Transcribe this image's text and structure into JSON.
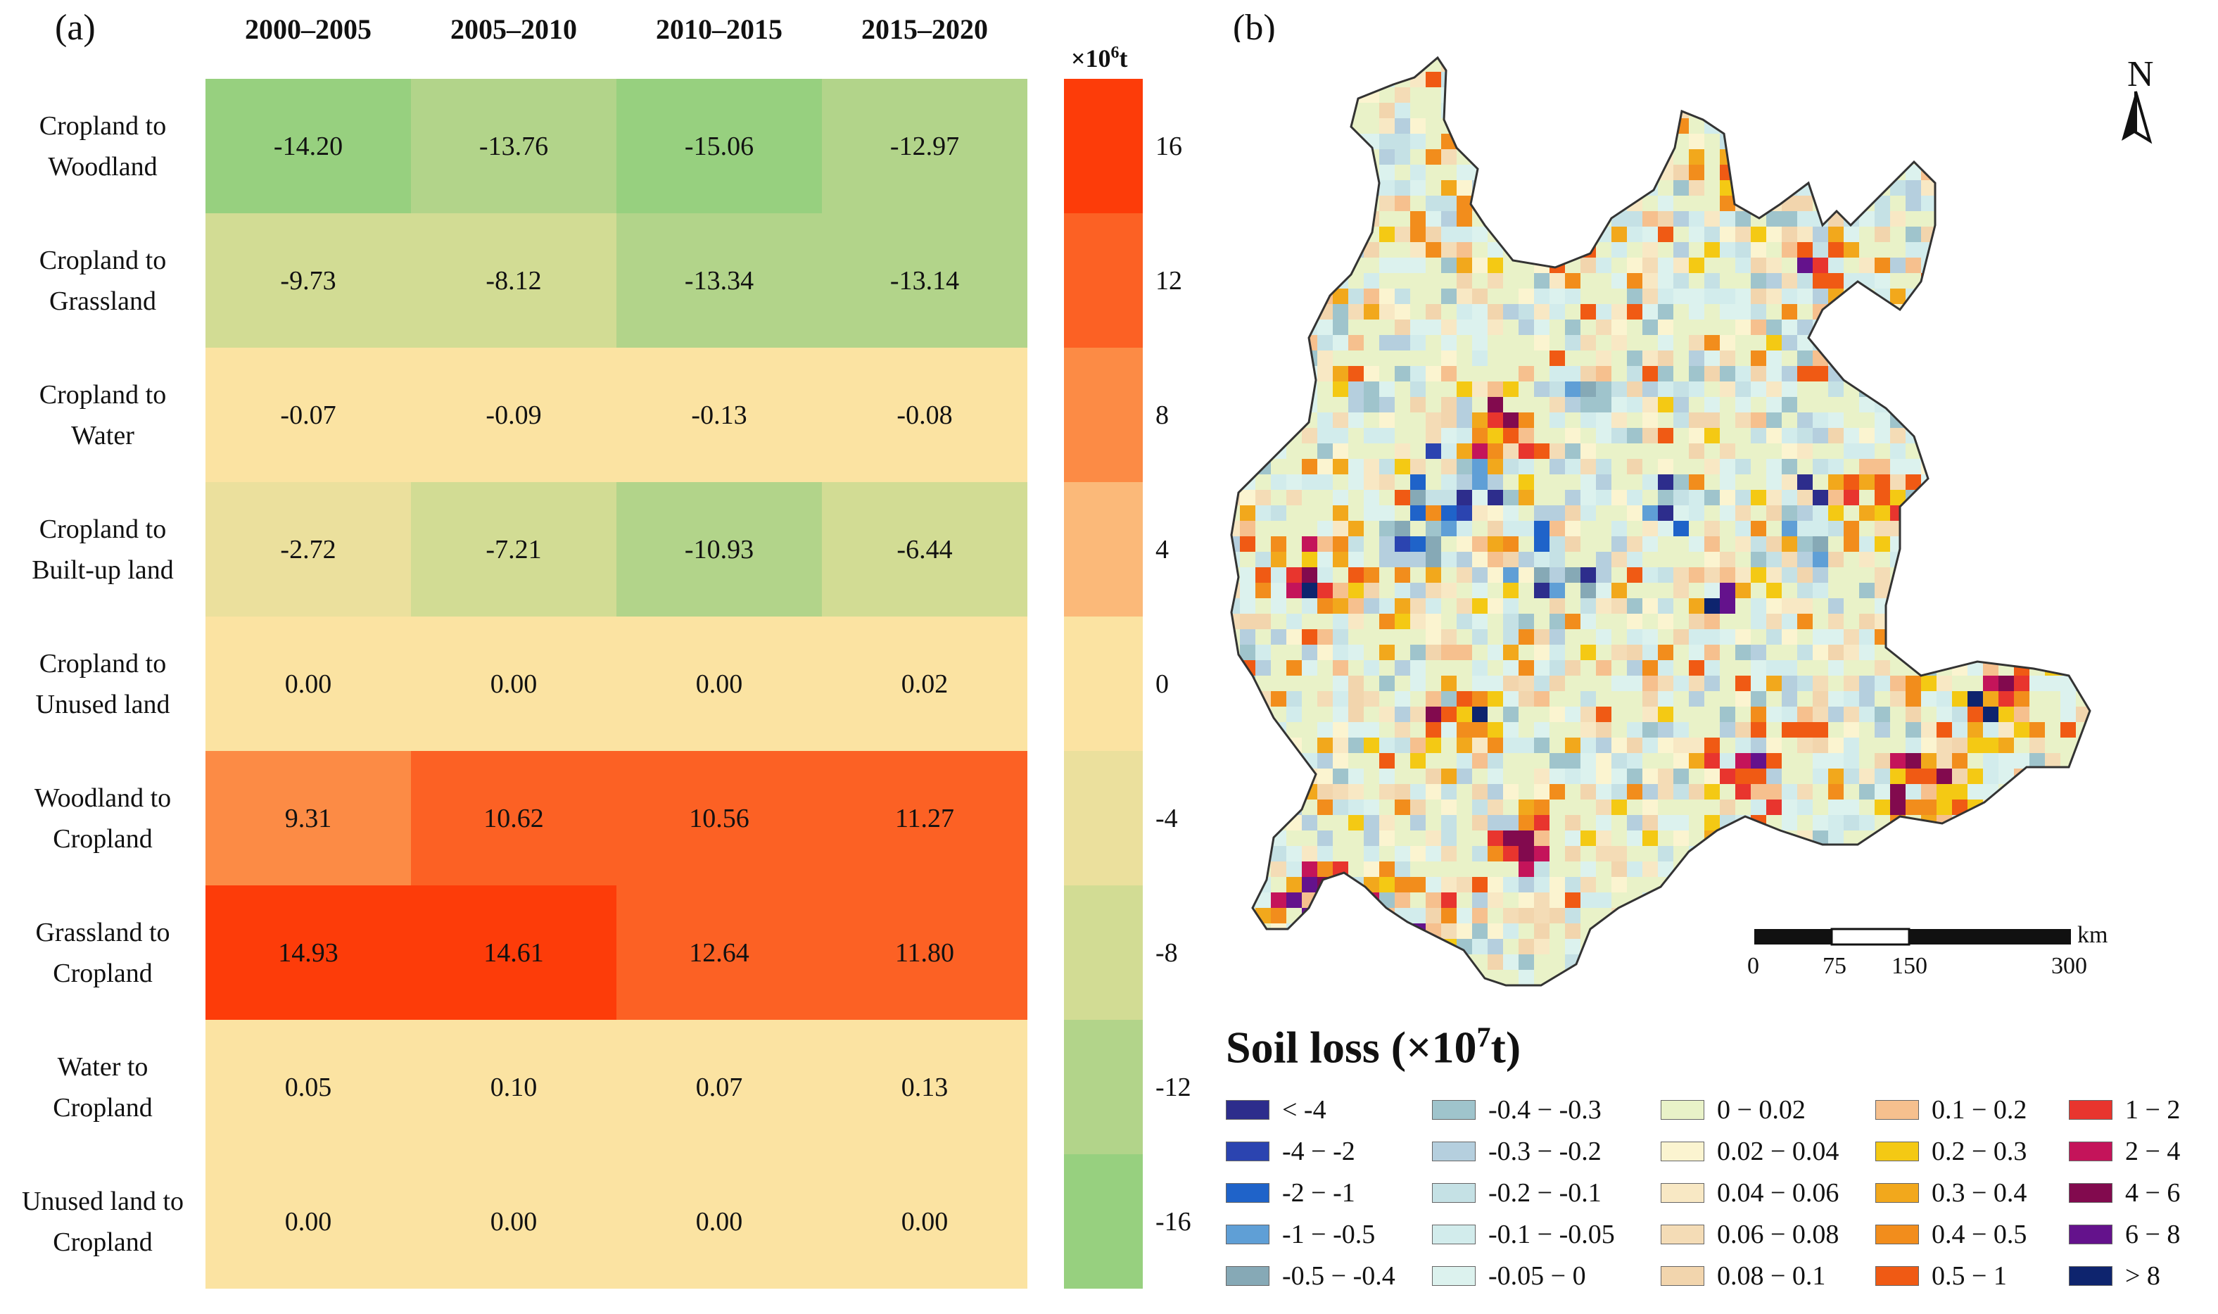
{
  "panel_a_label": "(a)",
  "panel_b_label": "(b)",
  "chart_data": [
    {
      "type": "heatmap",
      "columns": [
        "2000–2005",
        "2005–2010",
        "2010–2015",
        "2015–2020"
      ],
      "rows": [
        {
          "label": [
            "Cropland to",
            "Woodland"
          ],
          "values": [
            -14.2,
            -13.76,
            -15.06,
            -12.97
          ]
        },
        {
          "label": [
            "Cropland to",
            "Grassland"
          ],
          "values": [
            -9.73,
            -8.12,
            -13.34,
            -13.14
          ]
        },
        {
          "label": [
            "Cropland to",
            "Water"
          ],
          "values": [
            -0.07,
            -0.09,
            -0.13,
            -0.08
          ]
        },
        {
          "label": [
            "Cropland to",
            "Built-up land"
          ],
          "values": [
            -2.72,
            -7.21,
            -10.93,
            -6.44
          ]
        },
        {
          "label": [
            "Cropland to",
            "Unused land"
          ],
          "values": [
            0.0,
            0.0,
            0.0,
            0.02
          ]
        },
        {
          "label": [
            "Woodland to",
            "Cropland"
          ],
          "values": [
            9.31,
            10.62,
            10.56,
            11.27
          ]
        },
        {
          "label": [
            "Grassland to",
            "Cropland"
          ],
          "values": [
            14.93,
            14.61,
            12.64,
            11.8
          ]
        },
        {
          "label": [
            "Water to",
            "Cropland"
          ],
          "values": [
            0.05,
            0.1,
            0.07,
            0.13
          ]
        },
        {
          "label": [
            "Unused land to",
            "Cropland"
          ],
          "values": [
            0.0,
            0.0,
            0.0,
            0.0
          ]
        }
      ],
      "colorbar": {
        "unit_base": "×10",
        "unit_exp": "6",
        "unit_suffix": "t",
        "ticks": [
          "16",
          "12",
          "8",
          "4",
          "0",
          "-4",
          "-8",
          "-12",
          "-16"
        ],
        "bands": [
          {
            "min": 14,
            "color": "#fd3c09"
          },
          {
            "min": 10,
            "color": "#fc6124"
          },
          {
            "min": 6,
            "color": "#fc8b45"
          },
          {
            "min": 2,
            "color": "#fbb979"
          },
          {
            "min": -2,
            "color": "#fbe3a2"
          },
          {
            "min": -6,
            "color": "#ebe09d"
          },
          {
            "min": -10,
            "color": "#d2dc94"
          },
          {
            "min": -14,
            "color": "#b2d48a"
          },
          {
            "min": -999,
            "color": "#97d07f"
          }
        ]
      }
    },
    {
      "type": "map",
      "north_label": "N",
      "scale_bar": {
        "unit": "km",
        "labels": [
          "0",
          "75",
          "150",
          "300"
        ]
      },
      "legend": {
        "title_base": "Soil loss (×10",
        "title_exp": "7",
        "title_suffix": "t)",
        "items": [
          {
            "label": "< -4",
            "color": "#2d2d8c"
          },
          {
            "label": "-4 − -2",
            "color": "#2b44b0"
          },
          {
            "label": "-2 − -1",
            "color": "#1f63c9"
          },
          {
            "label": "-1 − -0.5",
            "color": "#5f9fd6"
          },
          {
            "label": "-0.5 − -0.4",
            "color": "#86a9b6"
          },
          {
            "label": "-0.4 − -0.3",
            "color": "#9fc4cc"
          },
          {
            "label": "-0.3 − -0.2",
            "color": "#b5cfde"
          },
          {
            "label": "-0.2 − -0.1",
            "color": "#c5e1e5"
          },
          {
            "label": "-0.1 − -0.05",
            "color": "#d2ecec"
          },
          {
            "label": "-0.05 − 0",
            "color": "#dcf2ee"
          },
          {
            "label": "0 − 0.02",
            "color": "#e9f2c8"
          },
          {
            "label": "0.02 − 0.04",
            "color": "#fbf4d0"
          },
          {
            "label": "0.04 − 0.06",
            "color": "#f8e8c4"
          },
          {
            "label": "0.06 − 0.08",
            "color": "#f4dcb6"
          },
          {
            "label": "0.08 − 0.1",
            "color": "#f2d5ad"
          },
          {
            "label": "0.1 − 0.2",
            "color": "#f6c08e"
          },
          {
            "label": "0.2 − 0.3",
            "color": "#f4c914"
          },
          {
            "label": "0.3 − 0.4",
            "color": "#f2a81c"
          },
          {
            "label": "0.4 − 0.5",
            "color": "#f28d1c"
          },
          {
            "label": "0.5 − 1",
            "color": "#f05a14"
          },
          {
            "label": "1 − 2",
            "color": "#e8352e"
          },
          {
            "label": "2 − 4",
            "color": "#c4145a"
          },
          {
            "label": "4 − 6",
            "color": "#820a4e"
          },
          {
            "label": "6 − 8",
            "color": "#64128c"
          },
          {
            "label": "> 8",
            "color": "#0e246e"
          }
        ]
      }
    }
  ]
}
